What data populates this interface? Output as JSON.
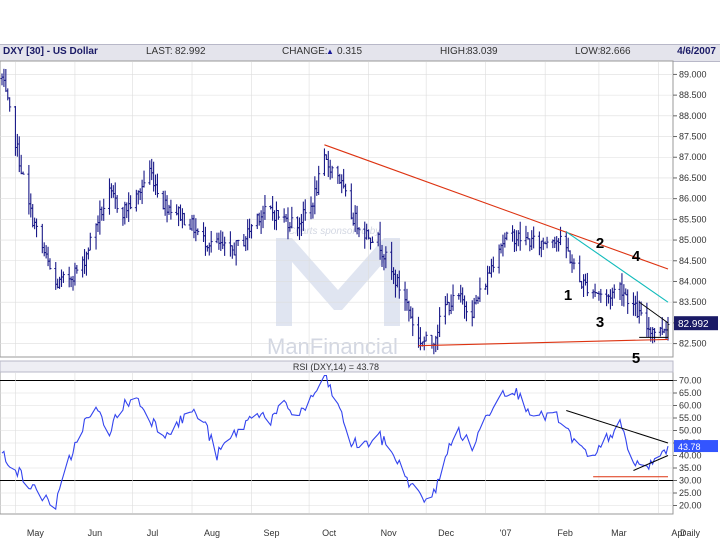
{
  "header": {
    "title": "DXY [30] - US Dollar",
    "last_label": "LAST:",
    "last_value": "82.992",
    "change_label": "CHANGE:",
    "change_value": "0.315",
    "high_label": "HIGH:",
    "high_value": "83.039",
    "low_label": "LOW:",
    "low_value": "82.666",
    "date": "4/6/2007"
  },
  "watermark": {
    "sponsor_text": "Charts sponsored by",
    "brand": "ManFinancial"
  },
  "colors": {
    "price": "#1a1a88",
    "rsi": "#3344ee",
    "trend_red": "#dd3311",
    "trend_teal": "#11bbbb",
    "triangle": "#000000",
    "badge": "#1a1a66",
    "rsi_badge": "#3355ff",
    "grid": "#dddddd"
  },
  "chart_data": [
    {
      "type": "line",
      "style": "ohlc-bars",
      "series_name": "DXY",
      "title": "DXY [30] - US Dollar",
      "x_ticks": [
        "May",
        "Jun",
        "Jul",
        "Aug",
        "Sep",
        "Oct",
        "Nov",
        "Dec",
        "'07",
        "Feb",
        "Mar",
        "Apr",
        "Daily"
      ],
      "y_ticks": [
        82.5,
        83.0,
        83.5,
        84.0,
        84.5,
        85.0,
        85.5,
        86.0,
        86.5,
        87.0,
        87.5,
        88.0,
        88.5,
        89.0
      ],
      "ylim": [
        82.2,
        89.3
      ],
      "last_value": 82.992,
      "grid": true,
      "x": [
        "2006-04-24",
        "2006-05-01",
        "2006-05-08",
        "2006-05-15",
        "2006-05-22",
        "2006-05-29",
        "2006-06-05",
        "2006-06-12",
        "2006-06-19",
        "2006-06-26",
        "2006-07-03",
        "2006-07-10",
        "2006-07-17",
        "2006-07-24",
        "2006-07-31",
        "2006-08-07",
        "2006-08-14",
        "2006-08-21",
        "2006-08-28",
        "2006-09-04",
        "2006-09-11",
        "2006-09-18",
        "2006-09-25",
        "2006-10-02",
        "2006-10-09",
        "2006-10-16",
        "2006-10-23",
        "2006-10-30",
        "2006-11-06",
        "2006-11-13",
        "2006-11-20",
        "2006-11-27",
        "2006-12-04",
        "2006-12-11",
        "2006-12-18",
        "2006-12-25",
        "2007-01-01",
        "2007-01-08",
        "2007-01-15",
        "2007-01-22",
        "2007-01-29",
        "2007-02-05",
        "2007-02-12",
        "2007-02-19",
        "2007-02-26",
        "2007-03-05",
        "2007-03-12",
        "2007-03-19",
        "2007-03-26",
        "2007-04-02",
        "2007-04-06"
      ],
      "values": [
        88.9,
        87.4,
        85.8,
        84.8,
        83.9,
        84.1,
        84.4,
        85.4,
        86.1,
        85.7,
        86.0,
        86.7,
        85.9,
        85.7,
        85.4,
        85.0,
        84.9,
        84.7,
        85.0,
        85.6,
        85.7,
        85.5,
        85.4,
        85.8,
        86.9,
        86.6,
        85.6,
        85.2,
        85.0,
        84.2,
        83.6,
        82.6,
        82.5,
        83.4,
        83.6,
        83.3,
        84.0,
        84.9,
        85.1,
        85.0,
        84.9,
        85.1,
        84.8,
        84.0,
        83.8,
        83.6,
        83.9,
        83.4,
        82.9,
        82.8,
        83.0
      ],
      "annotations": [
        {
          "text": "1",
          "x": "2007-02-19",
          "y": 83.8
        },
        {
          "text": "2",
          "x": "2007-02-26",
          "y": 85.0
        },
        {
          "text": "3",
          "x": "2007-02-26",
          "y": 83.0
        },
        {
          "text": "4",
          "x": "2007-03-19",
          "y": 84.6
        },
        {
          "text": "5",
          "x": "2007-03-19",
          "y": 82.2
        }
      ],
      "trendlines": [
        {
          "name": "upper-red",
          "from": {
            "x": "2006-10-09",
            "y": 87.3
          },
          "to": {
            "x": "2007-04-06",
            "y": 84.3
          }
        },
        {
          "name": "lower-red",
          "from": {
            "x": "2006-11-27",
            "y": 82.45
          },
          "to": {
            "x": "2007-04-06",
            "y": 82.6
          }
        },
        {
          "name": "teal",
          "from": {
            "x": "2007-02-12",
            "y": 85.2
          },
          "to": {
            "x": "2007-04-06",
            "y": 83.5
          }
        }
      ]
    },
    {
      "type": "line",
      "series_name": "RSI (DXY,14)",
      "title": "RSI (DXY,14) = 43.78",
      "y_ticks": [
        20.0,
        25.0,
        30.0,
        35.0,
        40.0,
        45.0,
        50.0,
        55.0,
        60.0,
        65.0,
        70.0
      ],
      "ylim": [
        17,
        73
      ],
      "last_value": 43.78,
      "reference_lines": [
        70,
        30
      ],
      "x": [
        "2006-04-24",
        "2006-05-01",
        "2006-05-08",
        "2006-05-15",
        "2006-05-22",
        "2006-05-29",
        "2006-06-05",
        "2006-06-12",
        "2006-06-19",
        "2006-06-26",
        "2006-07-03",
        "2006-07-10",
        "2006-07-17",
        "2006-07-24",
        "2006-07-31",
        "2006-08-07",
        "2006-08-14",
        "2006-08-21",
        "2006-08-28",
        "2006-09-04",
        "2006-09-11",
        "2006-09-18",
        "2006-09-25",
        "2006-10-02",
        "2006-10-09",
        "2006-10-16",
        "2006-10-23",
        "2006-10-30",
        "2006-11-06",
        "2006-11-13",
        "2006-11-20",
        "2006-11-27",
        "2006-12-04",
        "2006-12-11",
        "2006-12-18",
        "2006-12-25",
        "2007-01-01",
        "2007-01-08",
        "2007-01-15",
        "2007-01-22",
        "2007-01-29",
        "2007-02-05",
        "2007-02-12",
        "2007-02-19",
        "2007-02-26",
        "2007-03-05",
        "2007-03-12",
        "2007-03-19",
        "2007-03-26",
        "2007-04-02",
        "2007-04-06"
      ],
      "values": [
        41,
        35,
        28,
        24,
        20,
        38,
        52,
        58,
        50,
        60,
        63,
        55,
        49,
        52,
        58,
        54,
        40,
        47,
        52,
        58,
        54,
        60,
        56,
        62,
        72,
        60,
        45,
        44,
        48,
        42,
        32,
        24,
        22,
        40,
        50,
        43,
        55,
        65,
        67,
        60,
        55,
        57,
        50,
        43,
        38,
        47,
        52,
        37,
        35,
        40,
        43.78
      ],
      "trendlines": [
        {
          "name": "rsi-upper",
          "from": {
            "x": "2007-02-12",
            "y": 58
          },
          "to": {
            "x": "2007-04-06",
            "y": 45
          }
        },
        {
          "name": "rsi-lower",
          "from": {
            "x": "2007-03-19",
            "y": 34
          },
          "to": {
            "x": "2007-04-06",
            "y": 40
          }
        },
        {
          "name": "rsi-floor",
          "from": {
            "x": "2007-02-26",
            "y": 31.5
          },
          "to": {
            "x": "2007-04-06",
            "y": 31.5
          }
        }
      ]
    }
  ]
}
